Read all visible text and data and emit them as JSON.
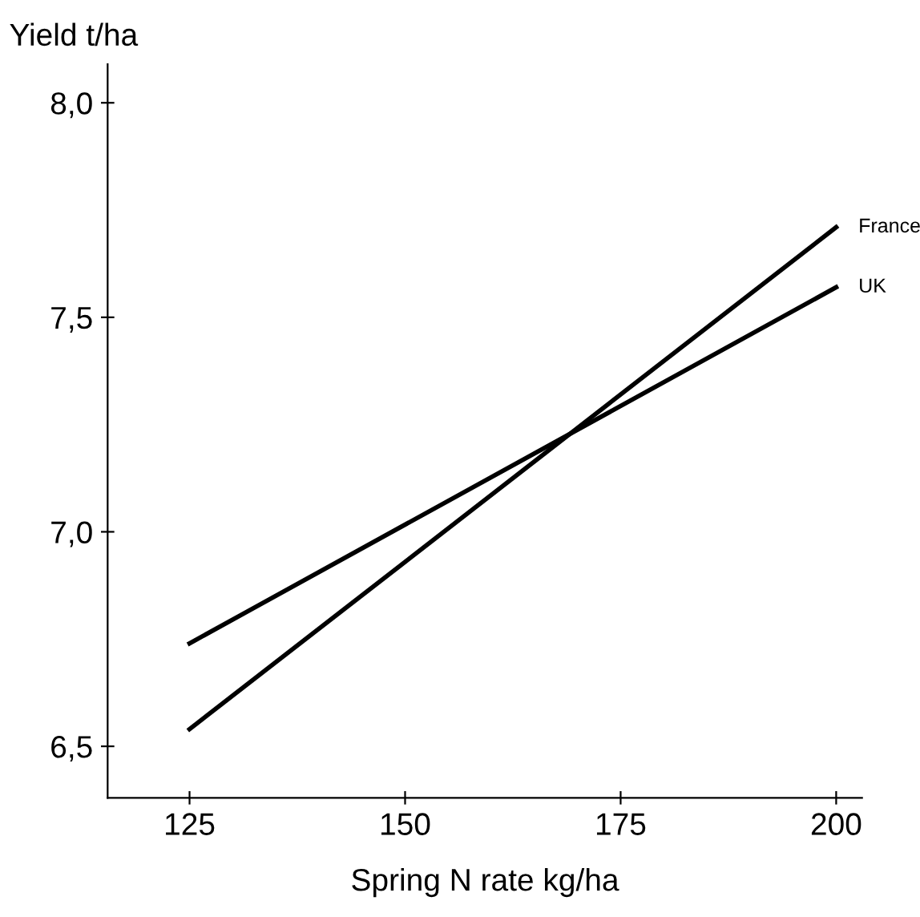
{
  "chart_data": {
    "type": "line",
    "ylabel": "Yield t/ha",
    "xlabel": "Spring N rate kg/ha",
    "xlim": [
      115.5,
      203
    ],
    "ylim": [
      6.38,
      8.09
    ],
    "xticks": [
      125,
      150,
      175,
      200
    ],
    "yticks": [
      {
        "value": 6.5,
        "label": "6,5"
      },
      {
        "value": 7.0,
        "label": "7,0"
      },
      {
        "value": 7.5,
        "label": "7,5"
      },
      {
        "value": 8.0,
        "label": "8,0"
      }
    ],
    "x": [
      125,
      200
    ],
    "series": [
      {
        "name": "France",
        "color": "#000000",
        "values": [
          6.54,
          7.71
        ]
      },
      {
        "name": "UK",
        "color": "#000000",
        "values": [
          6.74,
          7.57
        ]
      }
    ],
    "grid": false,
    "legend": false,
    "marker": "none",
    "line_style": "solid"
  }
}
